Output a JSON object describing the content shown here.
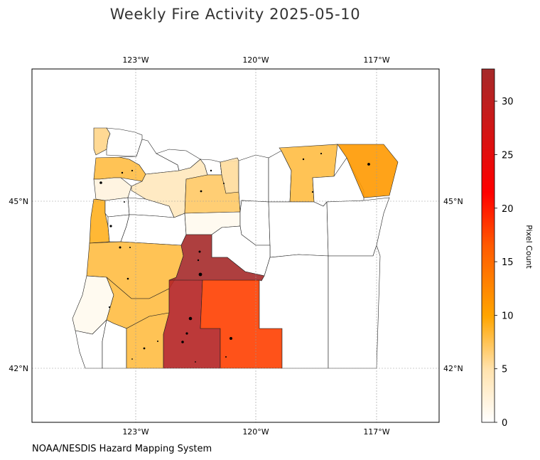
{
  "title": "Weekly Fire Activity 2025-05-10",
  "credit": "NOAA/NESDIS Hazard Mapping System",
  "map": {
    "lon_ticks": [
      "123°W",
      "120°W",
      "117°W"
    ],
    "lat_ticks": [
      "45°N",
      "42°N"
    ],
    "gridlines": true
  },
  "colorbar": {
    "label": "Pixel Count",
    "ticks": [
      "0",
      "5",
      "10",
      "15",
      "20",
      "25",
      "30"
    ],
    "range": [
      0,
      33
    ],
    "colors": [
      "#ffffff",
      "#ffe3b0",
      "#ffc066",
      "#ffa500",
      "#ff7a00",
      "#ff4000",
      "#ff0000",
      "#d01515",
      "#a52a2a"
    ]
  },
  "counties": [
    {
      "id": "clatsop",
      "count": 6
    },
    {
      "id": "columbia",
      "count": 0
    },
    {
      "id": "tillamook",
      "count": 8
    },
    {
      "id": "washington",
      "count": 0
    },
    {
      "id": "multnomah",
      "count": 0
    },
    {
      "id": "yamhill",
      "count": 2
    },
    {
      "id": "clackamas",
      "count": 4
    },
    {
      "id": "hood-river",
      "count": 0
    },
    {
      "id": "wasco",
      "count": 7
    },
    {
      "id": "sherman",
      "count": 5
    },
    {
      "id": "gilliam",
      "count": 0
    },
    {
      "id": "morrow",
      "count": 0
    },
    {
      "id": "umatilla",
      "count": 8
    },
    {
      "id": "union",
      "count": 0
    },
    {
      "id": "wallowa",
      "count": 11
    },
    {
      "id": "lincoln",
      "count": 9
    },
    {
      "id": "polk",
      "count": 0
    },
    {
      "id": "marion",
      "count": 0
    },
    {
      "id": "benton",
      "count": 0
    },
    {
      "id": "linn",
      "count": 0
    },
    {
      "id": "jefferson",
      "count": 1
    },
    {
      "id": "wheeler",
      "count": 0
    },
    {
      "id": "grant",
      "count": 0
    },
    {
      "id": "baker",
      "count": 0
    },
    {
      "id": "lane",
      "count": 8
    },
    {
      "id": "crook",
      "count": 0
    },
    {
      "id": "deschutes",
      "count": 33
    },
    {
      "id": "coos",
      "count": 1
    },
    {
      "id": "douglas",
      "count": 8
    },
    {
      "id": "curry",
      "count": 0
    },
    {
      "id": "josephine",
      "count": 0
    },
    {
      "id": "jackson",
      "count": 8
    },
    {
      "id": "klamath",
      "count": 31
    },
    {
      "id": "lake",
      "count": 18
    },
    {
      "id": "harney",
      "count": 0
    },
    {
      "id": "malheur",
      "count": 0
    }
  ]
}
